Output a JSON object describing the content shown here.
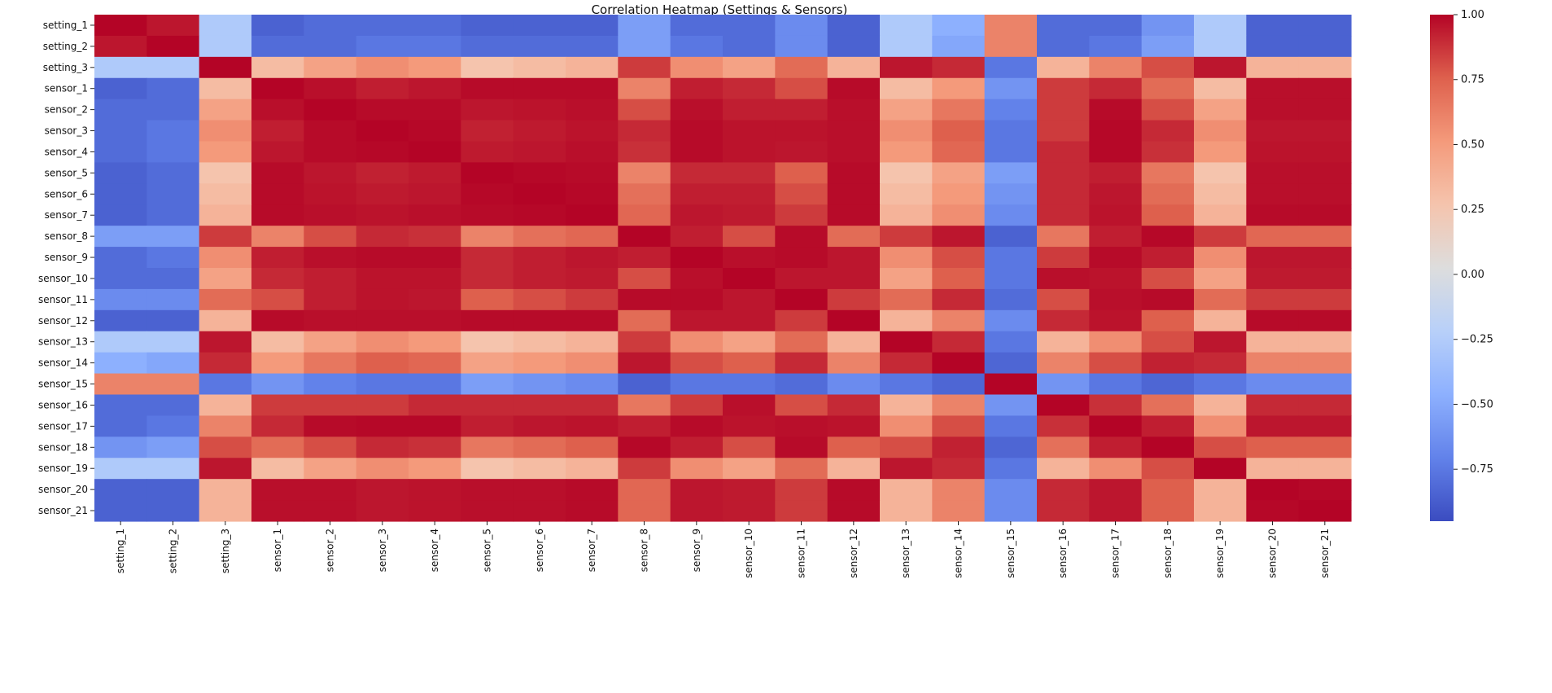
{
  "chart_data": {
    "type": "heatmap",
    "title": "Correlation Heatmap (Settings & Sensors)",
    "labels": [
      "setting_1",
      "setting_2",
      "setting_3",
      "sensor_1",
      "sensor_2",
      "sensor_3",
      "sensor_4",
      "sensor_5",
      "sensor_6",
      "sensor_7",
      "sensor_8",
      "sensor_9",
      "sensor_10",
      "sensor_11",
      "sensor_12",
      "sensor_13",
      "sensor_14",
      "sensor_15",
      "sensor_16",
      "sensor_17",
      "sensor_18",
      "sensor_19",
      "sensor_20",
      "sensor_21"
    ],
    "vmin": -1.0,
    "vmax": 1.0,
    "colormap": "coolwarm",
    "colorbar_ticks": [
      1.0,
      0.75,
      0.5,
      0.25,
      0.0,
      -0.25,
      -0.5,
      -0.75
    ],
    "colorbar_tick_labels": [
      "1.00",
      "0.75",
      "0.50",
      "0.25",
      "0.00",
      "−0.25",
      "−0.50",
      "−0.75"
    ],
    "matrix": [
      [
        1.0,
        0.95,
        -0.3,
        -0.9,
        -0.85,
        -0.85,
        -0.85,
        -0.9,
        -0.9,
        -0.9,
        -0.6,
        -0.85,
        -0.85,
        -0.7,
        -0.9,
        -0.3,
        -0.5,
        0.6,
        -0.85,
        -0.85,
        -0.65,
        -0.3,
        -0.9,
        -0.9
      ],
      [
        0.95,
        1.0,
        -0.3,
        -0.85,
        -0.85,
        -0.8,
        -0.8,
        -0.85,
        -0.85,
        -0.85,
        -0.6,
        -0.8,
        -0.85,
        -0.7,
        -0.9,
        -0.3,
        -0.55,
        0.6,
        -0.85,
        -0.8,
        -0.6,
        -0.3,
        -0.9,
        -0.9
      ],
      [
        -0.3,
        -0.3,
        1.0,
        0.3,
        0.45,
        0.55,
        0.5,
        0.25,
        0.3,
        0.35,
        0.85,
        0.55,
        0.45,
        0.7,
        0.35,
        0.95,
        0.9,
        -0.8,
        0.35,
        0.6,
        0.8,
        0.95,
        0.35,
        0.35
      ],
      [
        -0.9,
        -0.85,
        0.3,
        1.0,
        0.97,
        0.93,
        0.95,
        0.98,
        0.98,
        0.98,
        0.6,
        0.93,
        0.9,
        0.8,
        0.98,
        0.3,
        0.5,
        -0.65,
        0.85,
        0.9,
        0.7,
        0.3,
        0.97,
        0.97
      ],
      [
        -0.85,
        -0.85,
        0.45,
        0.97,
        1.0,
        0.98,
        0.98,
        0.95,
        0.96,
        0.97,
        0.8,
        0.97,
        0.93,
        0.93,
        0.97,
        0.45,
        0.65,
        -0.75,
        0.85,
        0.98,
        0.8,
        0.45,
        0.97,
        0.97
      ],
      [
        -0.85,
        -0.8,
        0.55,
        0.93,
        0.98,
        1.0,
        0.99,
        0.92,
        0.94,
        0.96,
        0.9,
        0.98,
        0.96,
        0.96,
        0.97,
        0.55,
        0.75,
        -0.8,
        0.85,
        0.99,
        0.9,
        0.55,
        0.95,
        0.95
      ],
      [
        -0.85,
        -0.8,
        0.5,
        0.95,
        0.98,
        0.99,
        1.0,
        0.94,
        0.95,
        0.97,
        0.88,
        0.98,
        0.96,
        0.95,
        0.97,
        0.5,
        0.72,
        -0.8,
        0.9,
        0.99,
        0.88,
        0.5,
        0.96,
        0.96
      ],
      [
        -0.9,
        -0.85,
        0.25,
        0.98,
        0.95,
        0.92,
        0.94,
        1.0,
        0.99,
        0.98,
        0.6,
        0.9,
        0.9,
        0.75,
        0.98,
        0.25,
        0.45,
        -0.6,
        0.9,
        0.93,
        0.65,
        0.25,
        0.97,
        0.97
      ],
      [
        -0.9,
        -0.85,
        0.3,
        0.98,
        0.96,
        0.94,
        0.95,
        0.99,
        1.0,
        0.99,
        0.68,
        0.93,
        0.93,
        0.8,
        0.98,
        0.3,
        0.5,
        -0.65,
        0.9,
        0.95,
        0.7,
        0.3,
        0.97,
        0.97
      ],
      [
        -0.9,
        -0.85,
        0.35,
        0.98,
        0.97,
        0.96,
        0.97,
        0.98,
        0.99,
        1.0,
        0.72,
        0.95,
        0.94,
        0.85,
        0.98,
        0.35,
        0.55,
        -0.7,
        0.9,
        0.96,
        0.75,
        0.35,
        0.98,
        0.98
      ],
      [
        -0.6,
        -0.6,
        0.85,
        0.6,
        0.8,
        0.9,
        0.88,
        0.6,
        0.68,
        0.72,
        1.0,
        0.93,
        0.8,
        0.98,
        0.7,
        0.85,
        0.95,
        -0.9,
        0.65,
        0.93,
        0.99,
        0.85,
        0.72,
        0.72
      ],
      [
        -0.85,
        -0.8,
        0.55,
        0.93,
        0.97,
        0.98,
        0.98,
        0.9,
        0.93,
        0.95,
        0.93,
        1.0,
        0.97,
        0.98,
        0.95,
        0.55,
        0.8,
        -0.8,
        0.85,
        0.98,
        0.93,
        0.55,
        0.95,
        0.95
      ],
      [
        -0.85,
        -0.85,
        0.45,
        0.9,
        0.93,
        0.96,
        0.96,
        0.9,
        0.93,
        0.94,
        0.8,
        0.97,
        1.0,
        0.95,
        0.95,
        0.45,
        0.75,
        -0.8,
        0.97,
        0.96,
        0.8,
        0.45,
        0.94,
        0.94
      ],
      [
        -0.7,
        -0.7,
        0.7,
        0.8,
        0.93,
        0.96,
        0.95,
        0.75,
        0.8,
        0.85,
        0.98,
        0.98,
        0.95,
        1.0,
        0.85,
        0.7,
        0.9,
        -0.85,
        0.8,
        0.97,
        0.98,
        0.7,
        0.85,
        0.85
      ],
      [
        -0.9,
        -0.9,
        0.35,
        0.98,
        0.97,
        0.97,
        0.97,
        0.98,
        0.98,
        0.98,
        0.7,
        0.95,
        0.95,
        0.85,
        1.0,
        0.35,
        0.6,
        -0.7,
        0.9,
        0.96,
        0.75,
        0.35,
        0.98,
        0.98
      ],
      [
        -0.3,
        -0.3,
        0.95,
        0.3,
        0.45,
        0.55,
        0.5,
        0.25,
        0.3,
        0.35,
        0.85,
        0.55,
        0.45,
        0.7,
        0.35,
        1.0,
        0.9,
        -0.8,
        0.35,
        0.55,
        0.8,
        0.95,
        0.35,
        0.35
      ],
      [
        -0.5,
        -0.55,
        0.9,
        0.5,
        0.65,
        0.75,
        0.72,
        0.45,
        0.5,
        0.55,
        0.95,
        0.8,
        0.75,
        0.9,
        0.6,
        0.9,
        1.0,
        -0.88,
        0.6,
        0.8,
        0.92,
        0.9,
        0.6,
        0.6
      ],
      [
        0.6,
        0.6,
        -0.8,
        -0.65,
        -0.75,
        -0.8,
        -0.8,
        -0.6,
        -0.65,
        -0.7,
        -0.9,
        -0.8,
        -0.8,
        -0.85,
        -0.7,
        -0.8,
        -0.88,
        1.0,
        -0.65,
        -0.8,
        -0.88,
        -0.8,
        -0.7,
        -0.7
      ],
      [
        -0.85,
        -0.85,
        0.35,
        0.85,
        0.85,
        0.85,
        0.9,
        0.9,
        0.9,
        0.9,
        0.65,
        0.85,
        0.97,
        0.8,
        0.9,
        0.35,
        0.6,
        -0.65,
        1.0,
        0.88,
        0.68,
        0.35,
        0.9,
        0.9
      ],
      [
        -0.85,
        -0.8,
        0.6,
        0.9,
        0.98,
        0.99,
        0.99,
        0.93,
        0.95,
        0.96,
        0.93,
        0.98,
        0.96,
        0.97,
        0.96,
        0.55,
        0.8,
        -0.8,
        0.88,
        1.0,
        0.93,
        0.55,
        0.95,
        0.95
      ],
      [
        -0.65,
        -0.6,
        0.8,
        0.7,
        0.8,
        0.9,
        0.88,
        0.65,
        0.7,
        0.75,
        0.99,
        0.93,
        0.8,
        0.98,
        0.75,
        0.8,
        0.92,
        -0.88,
        0.68,
        0.93,
        1.0,
        0.8,
        0.75,
        0.75
      ],
      [
        -0.3,
        -0.3,
        0.95,
        0.3,
        0.45,
        0.55,
        0.5,
        0.25,
        0.3,
        0.35,
        0.85,
        0.55,
        0.45,
        0.7,
        0.35,
        0.95,
        0.9,
        -0.8,
        0.35,
        0.55,
        0.8,
        1.0,
        0.35,
        0.35
      ],
      [
        -0.9,
        -0.9,
        0.35,
        0.97,
        0.97,
        0.95,
        0.96,
        0.97,
        0.97,
        0.98,
        0.72,
        0.95,
        0.94,
        0.85,
        0.98,
        0.35,
        0.6,
        -0.7,
        0.9,
        0.95,
        0.75,
        0.35,
        1.0,
        0.99
      ],
      [
        -0.9,
        -0.9,
        0.35,
        0.97,
        0.97,
        0.95,
        0.96,
        0.97,
        0.97,
        0.98,
        0.72,
        0.95,
        0.94,
        0.85,
        0.98,
        0.35,
        0.6,
        -0.7,
        0.9,
        0.95,
        0.75,
        0.35,
        0.99,
        1.0
      ]
    ]
  }
}
